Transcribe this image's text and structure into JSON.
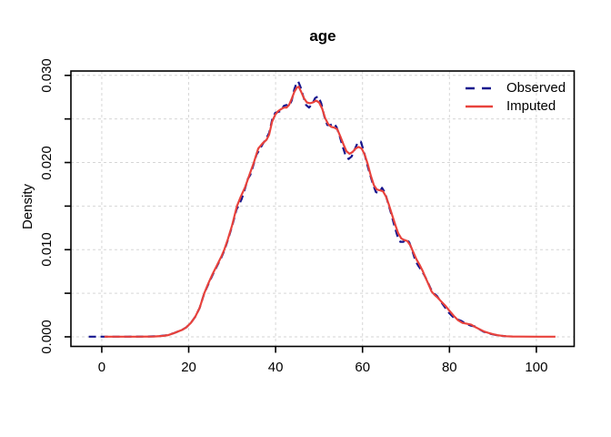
{
  "chart_data": {
    "type": "line",
    "title": "age",
    "xlabel": "",
    "ylabel": "Density",
    "xlim": [
      -7.1,
      108.7
    ],
    "ylim": [
      -0.0011,
      0.0305
    ],
    "x_ticks": [
      0,
      20,
      40,
      60,
      80,
      100
    ],
    "y_ticks_minor": [
      0,
      0.005,
      0.01,
      0.015,
      0.02,
      0.025,
      0.03
    ],
    "y_ticks_labeled": [
      {
        "value": 0,
        "label": "0.000"
      },
      {
        "value": 0.01,
        "label": "0.010"
      },
      {
        "value": 0.02,
        "label": "0.020"
      },
      {
        "value": 0.03,
        "label": "0.030"
      }
    ],
    "grid": {
      "style": "dashed",
      "color": "#d6d6d6",
      "x_every": 20,
      "y_every": 0.005
    },
    "legend": {
      "position": "top-right"
    },
    "series": [
      {
        "name": "Observed",
        "color": "#16168e",
        "style": "dashed",
        "points": [
          [
            -3,
            2e-05
          ],
          [
            -0.8,
            2e-05
          ],
          [
            2,
            2e-05
          ],
          [
            6,
            2e-05
          ],
          [
            10,
            3e-05
          ],
          [
            13,
            7e-05
          ],
          [
            15,
            0.00018
          ],
          [
            16.5,
            0.0004
          ],
          [
            17.5,
            0.0006
          ],
          [
            18.5,
            0.0008
          ],
          [
            19.5,
            0.0011
          ],
          [
            20.5,
            0.0016
          ],
          [
            21.5,
            0.0023
          ],
          [
            22.5,
            0.0033
          ],
          [
            23.6,
            0.005
          ],
          [
            24.5,
            0.006
          ],
          [
            25.5,
            0.0071
          ],
          [
            26.5,
            0.0081
          ],
          [
            27.5,
            0.0091
          ],
          [
            28.2,
            0.0099
          ],
          [
            29,
            0.0111
          ],
          [
            30,
            0.0127
          ],
          [
            31,
            0.0146
          ],
          [
            31.6,
            0.0152
          ],
          [
            32.2,
            0.0158
          ],
          [
            33,
            0.0171
          ],
          [
            33.6,
            0.0181
          ],
          [
            34.2,
            0.0186
          ],
          [
            35,
            0.0199
          ],
          [
            35.6,
            0.0209
          ],
          [
            36.2,
            0.0214
          ],
          [
            37,
            0.0221
          ],
          [
            37.9,
            0.0228
          ],
          [
            38.5,
            0.0234
          ],
          [
            39.2,
            0.0249
          ],
          [
            39.9,
            0.0257
          ],
          [
            40.6,
            0.0258
          ],
          [
            41.2,
            0.0259
          ],
          [
            41.9,
            0.0265
          ],
          [
            42.5,
            0.0266
          ],
          [
            43.1,
            0.0264
          ],
          [
            43.7,
            0.0271
          ],
          [
            44.3,
            0.0284
          ],
          [
            44.8,
            0.0291
          ],
          [
            45.2,
            0.0293
          ],
          [
            45.7,
            0.0287
          ],
          [
            46.3,
            0.0277
          ],
          [
            47,
            0.0266
          ],
          [
            47.7,
            0.0263
          ],
          [
            48.4,
            0.0267
          ],
          [
            49.1,
            0.0274
          ],
          [
            49.8,
            0.0276
          ],
          [
            50.5,
            0.0268
          ],
          [
            51.2,
            0.0253
          ],
          [
            51.9,
            0.0243
          ],
          [
            52.6,
            0.0243
          ],
          [
            53.3,
            0.0245
          ],
          [
            54,
            0.0241
          ],
          [
            54.7,
            0.0231
          ],
          [
            55.4,
            0.0219
          ],
          [
            56.1,
            0.0208
          ],
          [
            56.8,
            0.0204
          ],
          [
            57.5,
            0.0207
          ],
          [
            58.2,
            0.0215
          ],
          [
            58.9,
            0.0223
          ],
          [
            59.6,
            0.0224
          ],
          [
            60.3,
            0.0213
          ],
          [
            61,
            0.0199
          ],
          [
            61.7,
            0.0187
          ],
          [
            62.4,
            0.0175
          ],
          [
            63.1,
            0.0166
          ],
          [
            63.8,
            0.0165
          ],
          [
            64.5,
            0.0171
          ],
          [
            65.2,
            0.0165
          ],
          [
            65.9,
            0.0153
          ],
          [
            66.6,
            0.0141
          ],
          [
            67.3,
            0.0128
          ],
          [
            68,
            0.0116
          ],
          [
            68.7,
            0.0109
          ],
          [
            69.4,
            0.0109
          ],
          [
            70.1,
            0.0113
          ],
          [
            70.8,
            0.0108
          ],
          [
            71.5,
            0.0098
          ],
          [
            72.2,
            0.0087
          ],
          [
            72.9,
            0.0081
          ],
          [
            73.6,
            0.0076
          ],
          [
            74.3,
            0.007
          ],
          [
            75,
            0.0063
          ],
          [
            75.7,
            0.0055
          ],
          [
            76.4,
            0.005
          ],
          [
            77.1,
            0.0047
          ],
          [
            77.8,
            0.0042
          ],
          [
            78.8,
            0.0035
          ],
          [
            79.8,
            0.0028
          ],
          [
            80.8,
            0.0023
          ],
          [
            81.8,
            0.002
          ],
          [
            82.8,
            0.0018
          ],
          [
            83.8,
            0.0015
          ],
          [
            84.8,
            0.0013
          ],
          [
            85.8,
            0.0012
          ],
          [
            86.8,
            0.0009
          ],
          [
            87.8,
            0.0006
          ],
          [
            88.8,
            0.0004
          ],
          [
            89.8,
            0.0003
          ],
          [
            90.8,
            0.0002
          ],
          [
            91.8,
            0.00012
          ],
          [
            93,
            7e-05
          ]
        ]
      },
      {
        "name": "Imputed",
        "color": "#e8423c",
        "style": "solid",
        "points": [
          [
            0.6,
            2e-05
          ],
          [
            4,
            2e-05
          ],
          [
            8,
            2e-05
          ],
          [
            12,
            4e-05
          ],
          [
            14,
            0.0001
          ],
          [
            15.3,
            0.0002
          ],
          [
            16.5,
            0.0004
          ],
          [
            17.5,
            0.0006
          ],
          [
            18.5,
            0.0008
          ],
          [
            19.5,
            0.0011
          ],
          [
            20.5,
            0.0016
          ],
          [
            21.5,
            0.0023
          ],
          [
            22.5,
            0.0033
          ],
          [
            23.6,
            0.005
          ],
          [
            24.5,
            0.0061
          ],
          [
            25.5,
            0.0072
          ],
          [
            26.5,
            0.0082
          ],
          [
            27.5,
            0.0092
          ],
          [
            28.2,
            0.01
          ],
          [
            29,
            0.0112
          ],
          [
            30,
            0.0128
          ],
          [
            31.1,
            0.015
          ],
          [
            32,
            0.0161
          ],
          [
            33,
            0.0172
          ],
          [
            34,
            0.0186
          ],
          [
            35,
            0.02
          ],
          [
            36,
            0.0216
          ],
          [
            37,
            0.0222
          ],
          [
            37.9,
            0.0226
          ],
          [
            38.5,
            0.0232
          ],
          [
            39.2,
            0.0247
          ],
          [
            39.9,
            0.0255
          ],
          [
            40.6,
            0.0259
          ],
          [
            41.2,
            0.0261
          ],
          [
            41.9,
            0.0263
          ],
          [
            42.5,
            0.0263
          ],
          [
            43.1,
            0.0266
          ],
          [
            43.7,
            0.0273
          ],
          [
            44.3,
            0.0281
          ],
          [
            44.9,
            0.0286
          ],
          [
            45.3,
            0.0287
          ],
          [
            45.9,
            0.0281
          ],
          [
            46.5,
            0.0274
          ],
          [
            47.2,
            0.0269
          ],
          [
            47.9,
            0.0268
          ],
          [
            48.6,
            0.0269
          ],
          [
            49.3,
            0.0271
          ],
          [
            50,
            0.0269
          ],
          [
            50.7,
            0.0262
          ],
          [
            51.4,
            0.0251
          ],
          [
            52.1,
            0.0244
          ],
          [
            52.8,
            0.0241
          ],
          [
            53.5,
            0.024
          ],
          [
            54.2,
            0.0238
          ],
          [
            54.9,
            0.023
          ],
          [
            55.6,
            0.0221
          ],
          [
            56.3,
            0.0213
          ],
          [
            57,
            0.021
          ],
          [
            57.7,
            0.0212
          ],
          [
            58.4,
            0.0216
          ],
          [
            59.1,
            0.0218
          ],
          [
            59.8,
            0.0216
          ],
          [
            60.5,
            0.0209
          ],
          [
            61.2,
            0.0198
          ],
          [
            61.9,
            0.0185
          ],
          [
            62.6,
            0.0174
          ],
          [
            63.3,
            0.0169
          ],
          [
            64,
            0.0168
          ],
          [
            64.7,
            0.0167
          ],
          [
            65.4,
            0.0161
          ],
          [
            66.1,
            0.0151
          ],
          [
            66.8,
            0.014
          ],
          [
            67.5,
            0.0129
          ],
          [
            68.2,
            0.0119
          ],
          [
            68.9,
            0.0113
          ],
          [
            69.6,
            0.0111
          ],
          [
            70.3,
            0.011
          ],
          [
            71,
            0.0105
          ],
          [
            71.7,
            0.0097
          ],
          [
            72.4,
            0.0089
          ],
          [
            73.1,
            0.0083
          ],
          [
            73.8,
            0.0076
          ],
          [
            74.5,
            0.0068
          ],
          [
            75.2,
            0.006
          ],
          [
            75.9,
            0.0052
          ],
          [
            76.6,
            0.0048
          ],
          [
            77.3,
            0.0045
          ],
          [
            78,
            0.0041
          ],
          [
            79,
            0.0036
          ],
          [
            80,
            0.003
          ],
          [
            81,
            0.0024
          ],
          [
            82,
            0.0019
          ],
          [
            83,
            0.0016
          ],
          [
            84,
            0.0015
          ],
          [
            85,
            0.0014
          ],
          [
            86,
            0.0011
          ],
          [
            87,
            0.00085
          ],
          [
            88,
            0.0006
          ],
          [
            89,
            0.00045
          ],
          [
            90,
            0.0003
          ],
          [
            91,
            0.0002
          ],
          [
            92,
            0.00012
          ],
          [
            93,
            7e-05
          ],
          [
            94.5,
            4e-05
          ],
          [
            96,
            3e-05
          ],
          [
            100,
            2e-05
          ],
          [
            104.4,
            2e-05
          ]
        ]
      }
    ]
  }
}
